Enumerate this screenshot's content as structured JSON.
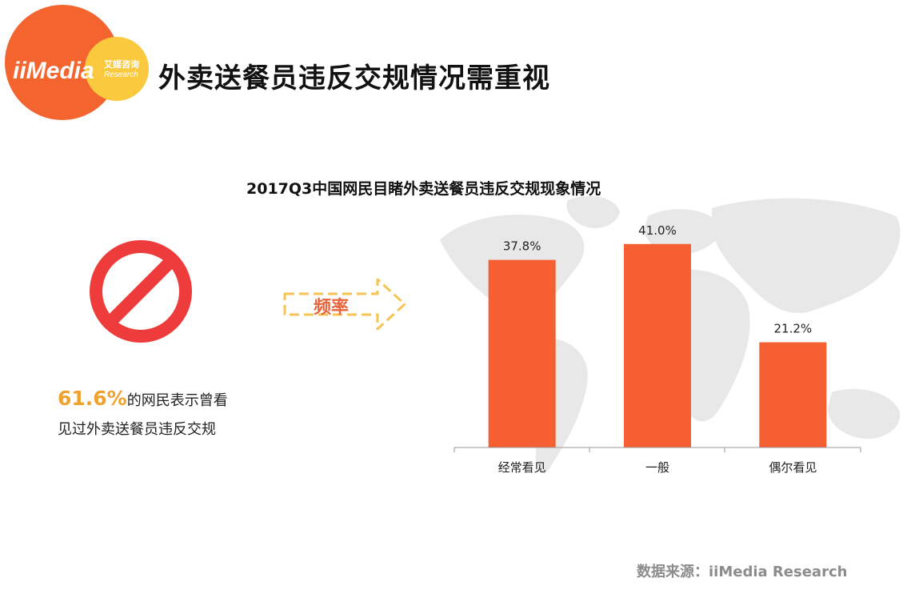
{
  "header": {
    "logo_text": "iiMedia",
    "logo_sub_cn": "艾媒咨询",
    "logo_sub_en": "Research",
    "title": "外卖送餐员违反交规情况需重视"
  },
  "left_note": {
    "percent": "61.6%",
    "line1_rest": "的网民表示曾看",
    "line2": "见过外卖送餐员违反交规"
  },
  "frequency_label": "频率",
  "source": "数据来源：iiMedia Research",
  "colors": {
    "bar": "#f55f32",
    "logo_orange": "#f3642e",
    "logo_yellow": "#fbc93d",
    "stop_red": "#ee3b3b",
    "freq_arrow": "#f6c453",
    "map_grey": "#e8e8e8"
  },
  "chart_data": {
    "type": "bar",
    "title": "2017Q3中国网民目睹外卖送餐员违反交规现象情况",
    "categories": [
      "经常看见",
      "一般",
      "偶尔看见"
    ],
    "values": [
      37.8,
      41.0,
      21.2
    ],
    "value_labels": [
      "37.8%",
      "41.0%",
      "21.2%"
    ],
    "ylim": [
      0,
      45
    ],
    "grid": false,
    "xlabel": "",
    "ylabel": ""
  }
}
